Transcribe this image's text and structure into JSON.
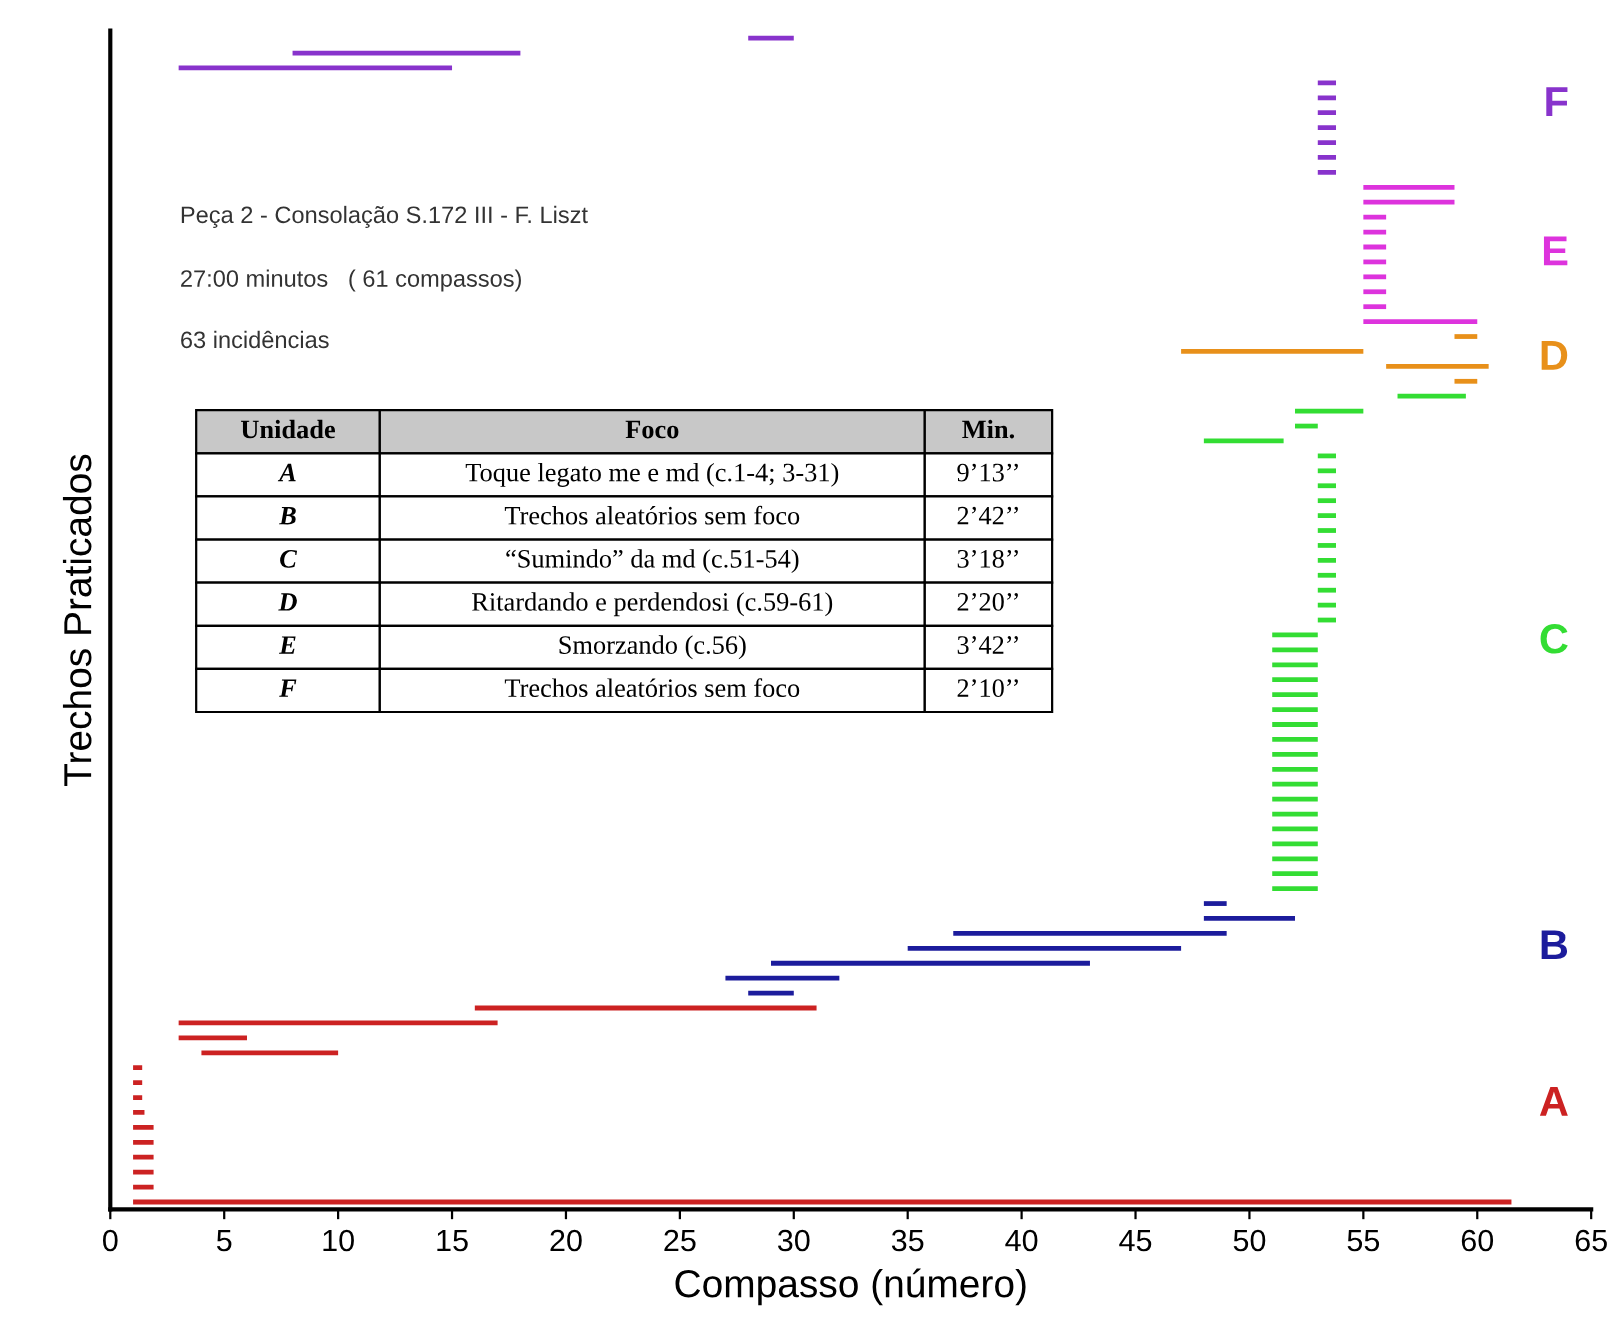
{
  "chart_data": {
    "type": "bar",
    "orientation": "horizontal",
    "xlabel": "Compasso (número)",
    "ylabel": "Trechos Praticados",
    "xlim": [
      0,
      65
    ],
    "xticks": [
      0,
      5,
      10,
      15,
      20,
      25,
      30,
      35,
      40,
      45,
      50,
      55,
      60,
      65
    ],
    "tick_labels": "x",
    "grid": false,
    "legend": false,
    "categories": [
      null,
      null,
      null,
      null,
      null,
      null,
      null,
      null,
      null,
      null,
      null,
      null,
      null,
      null,
      null,
      null,
      null,
      null,
      null,
      null,
      null,
      null,
      null,
      null,
      null,
      null,
      null,
      null,
      null,
      null,
      null,
      null,
      null,
      null,
      null,
      null,
      null,
      null,
      null,
      null,
      null,
      null,
      null,
      null,
      null,
      null,
      null,
      null,
      null,
      null,
      null,
      null,
      null,
      null,
      null,
      null,
      null,
      null,
      null,
      null,
      null,
      null,
      null,
      null,
      null,
      null,
      null,
      null,
      null,
      null,
      null,
      null,
      null,
      null,
      null,
      null,
      null,
      null,
      null
    ],
    "series": [
      {
        "name": "F",
        "color": "#8833cc",
        "values": [
          2,
          10,
          12,
          0.8,
          0.8,
          0.8,
          0.8,
          0.8,
          0.8,
          0.8,
          null,
          null,
          null,
          null,
          null,
          null,
          null,
          null,
          null,
          null,
          null,
          null,
          null,
          null,
          null,
          null,
          null,
          null,
          null,
          null,
          null,
          null,
          null,
          null,
          null,
          null,
          null,
          null,
          null,
          null,
          null,
          null,
          null,
          null,
          null,
          null,
          null,
          null,
          null,
          null,
          null,
          null,
          null,
          null,
          null,
          null,
          null,
          null,
          null,
          null,
          null,
          null,
          null,
          null,
          null,
          null,
          null,
          null,
          null,
          null,
          null,
          null,
          null,
          null,
          null,
          null,
          null,
          null,
          null
        ],
        "base": [
          28,
          8,
          3,
          53,
          53,
          53,
          53,
          53,
          53,
          53,
          null,
          null,
          null,
          null,
          null,
          null,
          null,
          null,
          null,
          null,
          null,
          null,
          null,
          null,
          null,
          null,
          null,
          null,
          null,
          null,
          null,
          null,
          null,
          null,
          null,
          null,
          null,
          null,
          null,
          null,
          null,
          null,
          null,
          null,
          null,
          null,
          null,
          null,
          null,
          null,
          null,
          null,
          null,
          null,
          null,
          null,
          null,
          null,
          null,
          null,
          null,
          null,
          null,
          null,
          null,
          null,
          null,
          null,
          null,
          null,
          null,
          null,
          null,
          null,
          null,
          null,
          null,
          null,
          null
        ]
      },
      {
        "name": "E",
        "color": "#dd33dd",
        "values": [
          null,
          null,
          null,
          null,
          null,
          null,
          null,
          null,
          null,
          null,
          4,
          4,
          1,
          1,
          1,
          1,
          1,
          1,
          1,
          5,
          null,
          null,
          null,
          null,
          null,
          null,
          null,
          null,
          null,
          null,
          null,
          null,
          null,
          null,
          null,
          null,
          null,
          null,
          null,
          null,
          null,
          null,
          null,
          null,
          null,
          null,
          null,
          null,
          null,
          null,
          null,
          null,
          null,
          null,
          null,
          null,
          null,
          null,
          null,
          null,
          null,
          null,
          null,
          null,
          null,
          null,
          null,
          null,
          null,
          null,
          null,
          null,
          null,
          null,
          null,
          null,
          null,
          null,
          null
        ],
        "base": [
          null,
          null,
          null,
          null,
          null,
          null,
          null,
          null,
          null,
          null,
          55,
          55,
          55,
          55,
          55,
          55,
          55,
          55,
          55,
          55,
          null,
          null,
          null,
          null,
          null,
          null,
          null,
          null,
          null,
          null,
          null,
          null,
          null,
          null,
          null,
          null,
          null,
          null,
          null,
          null,
          null,
          null,
          null,
          null,
          null,
          null,
          null,
          null,
          null,
          null,
          null,
          null,
          null,
          null,
          null,
          null,
          null,
          null,
          null,
          null,
          null,
          null,
          null,
          null,
          null,
          null,
          null,
          null,
          null,
          null,
          null,
          null,
          null,
          null,
          null,
          null,
          null,
          null,
          null
        ]
      },
      {
        "name": "D",
        "color": "#e8901a",
        "values": [
          null,
          null,
          null,
          null,
          null,
          null,
          null,
          null,
          null,
          null,
          null,
          null,
          null,
          null,
          null,
          null,
          null,
          null,
          null,
          null,
          1,
          8,
          4.5,
          1,
          null,
          null,
          null,
          null,
          null,
          null,
          null,
          null,
          null,
          null,
          null,
          null,
          null,
          null,
          null,
          null,
          null,
          null,
          null,
          null,
          null,
          null,
          null,
          null,
          null,
          null,
          null,
          null,
          null,
          null,
          null,
          null,
          null,
          null,
          null,
          null,
          null,
          null,
          null,
          null,
          null,
          null,
          null,
          null,
          null,
          null,
          null,
          null,
          null,
          null,
          null,
          null,
          null,
          null,
          null
        ],
        "base": [
          null,
          null,
          null,
          null,
          null,
          null,
          null,
          null,
          null,
          null,
          null,
          null,
          null,
          null,
          null,
          null,
          null,
          null,
          null,
          null,
          59,
          47,
          56,
          59,
          null,
          null,
          null,
          null,
          null,
          null,
          null,
          null,
          null,
          null,
          null,
          null,
          null,
          null,
          null,
          null,
          null,
          null,
          null,
          null,
          null,
          null,
          null,
          null,
          null,
          null,
          null,
          null,
          null,
          null,
          null,
          null,
          null,
          null,
          null,
          null,
          null,
          null,
          null,
          null,
          null,
          null,
          null,
          null,
          null,
          null,
          null,
          null,
          null,
          null,
          null,
          null,
          null,
          null,
          null
        ]
      },
      {
        "name": "C",
        "color": "#33dd33",
        "values": [
          null,
          null,
          null,
          null,
          null,
          null,
          null,
          null,
          null,
          null,
          null,
          null,
          null,
          null,
          null,
          null,
          null,
          null,
          null,
          null,
          null,
          null,
          null,
          null,
          3,
          3,
          1,
          3.5,
          0.8,
          0.8,
          0.8,
          0.8,
          0.8,
          0.8,
          0.8,
          0.8,
          0.8,
          0.8,
          0.8,
          0.8,
          2,
          2,
          2,
          2,
          2,
          2,
          2,
          2,
          2,
          2,
          2,
          2,
          2,
          2,
          2,
          2,
          2,
          2,
          null,
          null,
          null,
          null,
          null,
          null,
          null,
          null,
          null,
          null,
          null,
          null,
          null,
          null,
          null,
          null,
          null,
          null,
          null,
          null,
          null
        ],
        "base": [
          null,
          null,
          null,
          null,
          null,
          null,
          null,
          null,
          null,
          null,
          null,
          null,
          null,
          null,
          null,
          null,
          null,
          null,
          null,
          null,
          null,
          null,
          null,
          null,
          56.5,
          52,
          52,
          48,
          53,
          53,
          53,
          53,
          53,
          53,
          53,
          53,
          53,
          53,
          53,
          53,
          51,
          51,
          51,
          51,
          51,
          51,
          51,
          51,
          51,
          51,
          51,
          51,
          51,
          51,
          51,
          51,
          51,
          51,
          null,
          null,
          null,
          null,
          null,
          null,
          null,
          null,
          null,
          null,
          null,
          null,
          null,
          null,
          null,
          null,
          null,
          null,
          null,
          null,
          null
        ]
      },
      {
        "name": "B",
        "color": "#1c1c9c",
        "values": [
          null,
          null,
          null,
          null,
          null,
          null,
          null,
          null,
          null,
          null,
          null,
          null,
          null,
          null,
          null,
          null,
          null,
          null,
          null,
          null,
          null,
          null,
          null,
          null,
          null,
          null,
          null,
          null,
          null,
          null,
          null,
          null,
          null,
          null,
          null,
          null,
          null,
          null,
          null,
          null,
          null,
          null,
          null,
          null,
          null,
          null,
          null,
          null,
          null,
          null,
          null,
          null,
          null,
          null,
          null,
          null,
          null,
          null,
          1,
          4,
          12,
          12,
          14,
          5,
          2,
          null,
          null,
          null,
          null,
          null,
          null,
          null,
          null,
          null,
          null,
          null,
          null,
          null,
          null
        ],
        "base": [
          null,
          null,
          null,
          null,
          null,
          null,
          null,
          null,
          null,
          null,
          null,
          null,
          null,
          null,
          null,
          null,
          null,
          null,
          null,
          null,
          null,
          null,
          null,
          null,
          null,
          null,
          null,
          null,
          null,
          null,
          null,
          null,
          null,
          null,
          null,
          null,
          null,
          null,
          null,
          null,
          null,
          null,
          null,
          null,
          null,
          null,
          null,
          null,
          null,
          null,
          null,
          null,
          null,
          null,
          null,
          null,
          null,
          null,
          48,
          48,
          37,
          35,
          29,
          27,
          28,
          null,
          null,
          null,
          null,
          null,
          null,
          null,
          null,
          null,
          null,
          null,
          null,
          null,
          null
        ]
      },
      {
        "name": "A",
        "color": "#cc2222",
        "values": [
          null,
          null,
          null,
          null,
          null,
          null,
          null,
          null,
          null,
          null,
          null,
          null,
          null,
          null,
          null,
          null,
          null,
          null,
          null,
          null,
          null,
          null,
          null,
          null,
          null,
          null,
          null,
          null,
          null,
          null,
          null,
          null,
          null,
          null,
          null,
          null,
          null,
          null,
          null,
          null,
          null,
          null,
          null,
          null,
          null,
          null,
          null,
          null,
          null,
          null,
          null,
          null,
          null,
          null,
          null,
          null,
          null,
          null,
          null,
          null,
          null,
          null,
          null,
          null,
          null,
          15,
          14,
          3,
          6,
          0.4,
          0.4,
          0.4,
          0.5,
          0.9,
          0.9,
          0.9,
          0.9,
          0.9,
          60.5
        ],
        "base": [
          null,
          null,
          null,
          null,
          null,
          null,
          null,
          null,
          null,
          null,
          null,
          null,
          null,
          null,
          null,
          null,
          null,
          null,
          null,
          null,
          null,
          null,
          null,
          null,
          null,
          null,
          null,
          null,
          null,
          null,
          null,
          null,
          null,
          null,
          null,
          null,
          null,
          null,
          null,
          null,
          null,
          null,
          null,
          null,
          null,
          null,
          null,
          null,
          null,
          null,
          null,
          null,
          null,
          null,
          null,
          null,
          null,
          null,
          null,
          null,
          null,
          null,
          null,
          null,
          null,
          16,
          3,
          3,
          4,
          1,
          1,
          1,
          1,
          1,
          1,
          1,
          1,
          1,
          1
        ]
      }
    ],
    "annotations": [
      "Peça 2 - Consolação S.172 III - F. Liszt",
      "27:00 minutos   ( 61 compassos)",
      "63 incidências",
      "Unidade",
      "Foco",
      "Min.",
      "A",
      "Toque legato me e md (c.1-4; 3-31)",
      "9’13’’",
      "B",
      "Trechos aleatórios sem foco",
      "2’42’’",
      "C",
      "“Sumindo” da md (c.51-54)",
      "3’18’’",
      "D",
      "Ritardando e perdendosi (c.59-61)",
      "2’20’’",
      "E",
      "Smorzando (c.56)",
      "3’42’’",
      "F",
      "Trechos aleatórios sem foco",
      "2’10’’"
    ]
  }
}
